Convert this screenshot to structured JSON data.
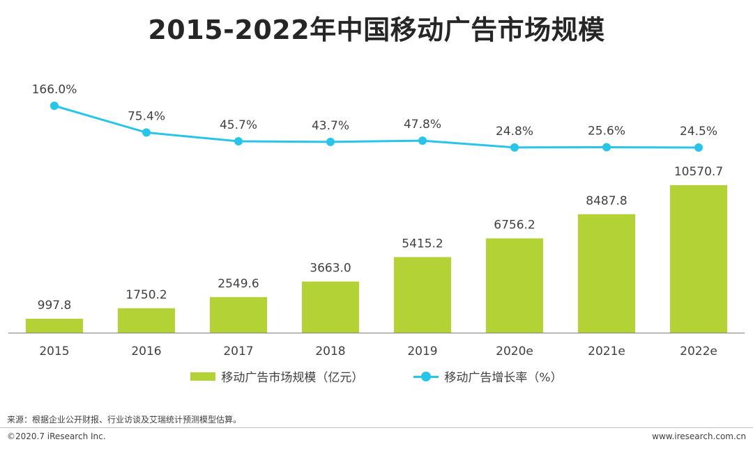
{
  "header": {
    "title": "2015-2022年中国移动广告市场规模"
  },
  "chart_data": {
    "type": "bar+line",
    "title": "2015-2022年中国移动广告市场规模",
    "categories": [
      "2015",
      "2016",
      "2017",
      "2018",
      "2019",
      "2020e",
      "2021e",
      "2022e"
    ],
    "series": [
      {
        "name": "移动广告市场规模（亿元）",
        "type": "bar",
        "values": [
          997.8,
          1750.2,
          2549.6,
          3663.0,
          5415.2,
          6756.2,
          8487.8,
          10570.7
        ],
        "labels": [
          "997.8",
          "1750.2",
          "2549.6",
          "3663.0",
          "5415.2",
          "6756.2",
          "8487.8",
          "10570.7"
        ],
        "color": "#b2d235"
      },
      {
        "name": "移动广告增长率（%）",
        "type": "line",
        "values": [
          166.0,
          75.4,
          45.7,
          43.7,
          47.8,
          24.8,
          25.6,
          24.5
        ],
        "labels": [
          "166.0%",
          "75.4%",
          "45.7%",
          "43.7%",
          "47.8%",
          "24.8%",
          "25.6%",
          "24.5%"
        ],
        "color": "#28c4ea"
      }
    ],
    "legend_position": "bottom",
    "grid": false
  },
  "footer": {
    "source": "来源：根据企业公开财报、行业访谈及艾瑞统计预测模型估算。",
    "copyright": "©2020.7 iResearch Inc.",
    "website": "www.iresearch.com.cn"
  }
}
